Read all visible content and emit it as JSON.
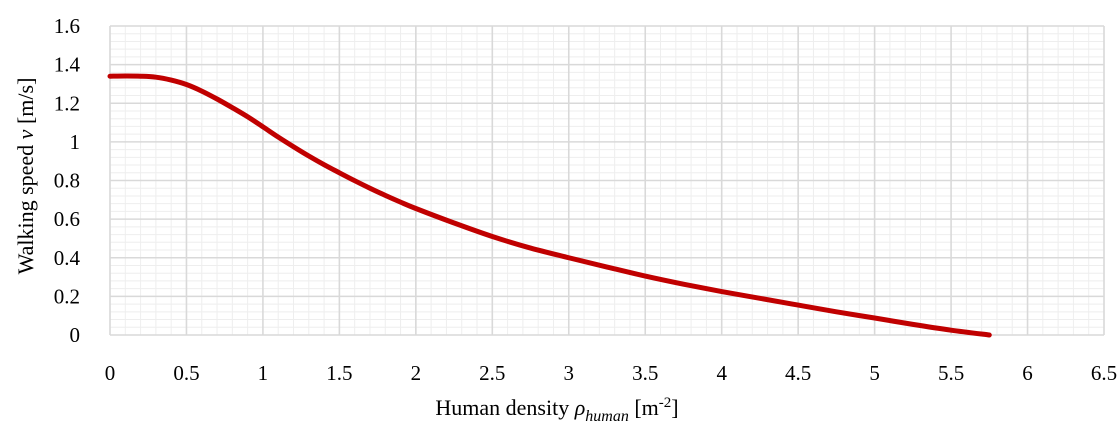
{
  "chart_data": {
    "type": "line",
    "title": "",
    "xlabel": {
      "prefix": "Human density ",
      "symbol": "ρ",
      "subscript": "human",
      "unit_open": " [m",
      "unit_sup": "-2",
      "unit_close": "]"
    },
    "ylabel": {
      "prefix": "Walking speed ",
      "symbol": "v",
      "unit": " [m/s]"
    },
    "xlim": [
      0,
      6.5
    ],
    "ylim": [
      0,
      1.6
    ],
    "x_ticks": [
      0,
      0.5,
      1,
      1.5,
      2,
      2.5,
      3,
      3.5,
      4,
      4.5,
      5,
      5.5,
      6,
      6.5
    ],
    "x_tick_labels": [
      "0",
      "0.5",
      "1",
      "1.5",
      "2",
      "2.5",
      "3",
      "3.5",
      "4",
      "4.5",
      "5",
      "5.5",
      "6",
      "6.5"
    ],
    "y_ticks": [
      0,
      0.2,
      0.4,
      0.6,
      0.8,
      1,
      1.2,
      1.4,
      1.6
    ],
    "y_tick_labels": [
      "0",
      "0.2",
      "0.4",
      "0.6",
      "0.8",
      "1",
      "1.2",
      "1.4",
      "1.6"
    ],
    "grid": true,
    "legend": "none",
    "colors": {
      "line": "#C00000",
      "major_grid": "#D9D9D9",
      "minor_grid": "#EEEEEE"
    },
    "series": [
      {
        "x": [
          0,
          0.1,
          0.2,
          0.3,
          0.4,
          0.5,
          0.6,
          0.7,
          0.8,
          0.9,
          1.0,
          1.1,
          1.2,
          1.3,
          1.4,
          1.5,
          1.6,
          1.7,
          1.8,
          1.9,
          2.0,
          2.25,
          2.5,
          2.75,
          3.0,
          3.25,
          3.5,
          3.75,
          4.0,
          4.25,
          4.5,
          4.75,
          5.0,
          5.25,
          5.5,
          5.75
        ],
        "y": [
          1.34,
          1.341,
          1.34,
          1.335,
          1.32,
          1.297,
          1.263,
          1.222,
          1.177,
          1.13,
          1.078,
          1.025,
          0.975,
          0.927,
          0.882,
          0.84,
          0.799,
          0.76,
          0.723,
          0.688,
          0.655,
          0.58,
          0.51,
          0.45,
          0.4,
          0.352,
          0.305,
          0.263,
          0.225,
          0.19,
          0.155,
          0.12,
          0.088,
          0.055,
          0.025,
          0.0
        ]
      }
    ]
  }
}
